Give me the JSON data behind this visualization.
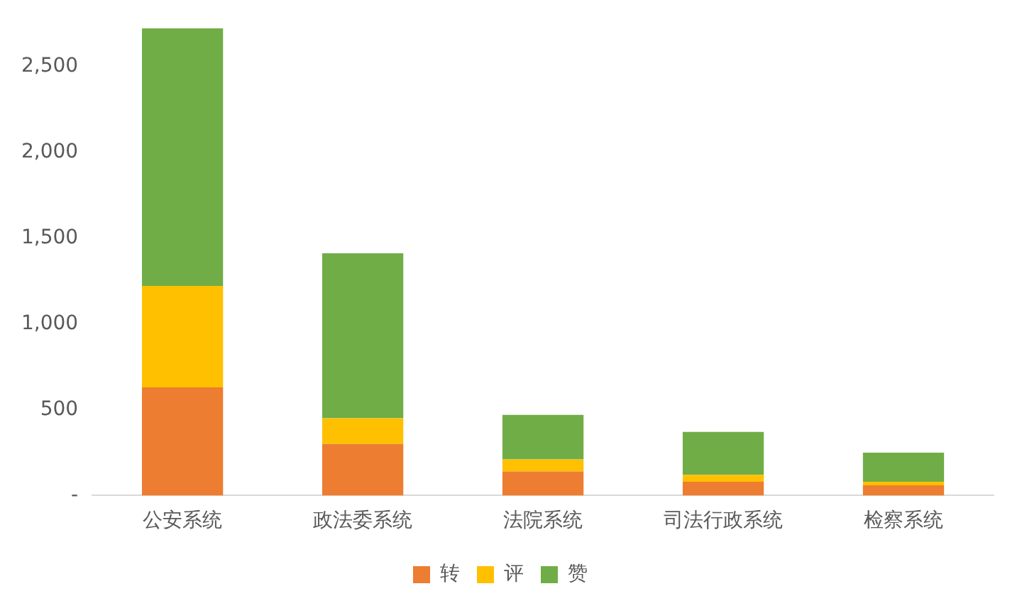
{
  "chart_data": {
    "type": "bar",
    "stacked": true,
    "categories": [
      "公安系统",
      "政法委系统",
      "法院系统",
      "司法行政系统",
      "检察系统"
    ],
    "series": [
      {
        "name": "转",
        "color": "#ed7d31",
        "values": [
          630,
          300,
          140,
          80,
          60
        ]
      },
      {
        "name": "评",
        "color": "#ffc000",
        "values": [
          590,
          150,
          70,
          40,
          20
        ]
      },
      {
        "name": "赞",
        "color": "#70ad47",
        "values": [
          1500,
          960,
          260,
          250,
          170
        ]
      }
    ],
    "ylim": [
      0,
      2720
    ],
    "yticks": [
      {
        "value": 0,
        "label": "-"
      },
      {
        "value": 500,
        "label": "500"
      },
      {
        "value": 1000,
        "label": "1,000"
      },
      {
        "value": 1500,
        "label": "1,500"
      },
      {
        "value": 2000,
        "label": "2,000"
      },
      {
        "value": 2500,
        "label": "2,500"
      }
    ],
    "grid": false,
    "legend": "bottom"
  }
}
